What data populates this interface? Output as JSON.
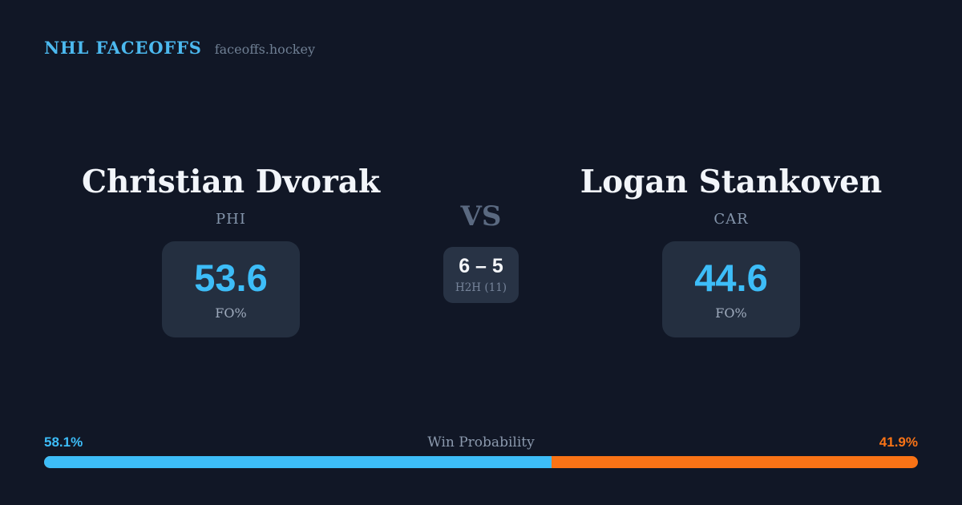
{
  "header": {
    "brand": "NHL FACEOFFS",
    "site": "faceoffs.hockey"
  },
  "matchup": {
    "vs_label": "VS",
    "left_player": {
      "name": "Christian Dvorak",
      "team": "PHI",
      "stat_value": "53.6",
      "stat_label": "FO%"
    },
    "right_player": {
      "name": "Logan Stankoven",
      "team": "CAR",
      "stat_value": "44.6",
      "stat_label": "FO%"
    },
    "h2h": {
      "record": "6 – 5",
      "label": "H2H (11)"
    }
  },
  "win_probability": {
    "title": "Win Probability",
    "left_pct_label": "58.1%",
    "right_pct_label": "41.9%",
    "left_value": 58.1,
    "right_value": 41.9
  },
  "colors": {
    "background": "#111726",
    "card": "#242f40",
    "accent_blue": "#3dbdf8",
    "accent_orange": "#f97316",
    "name_text": "#f2f5fa",
    "muted_text": "#8495ab"
  },
  "chart_data": {
    "type": "bar",
    "title": "Win Probability",
    "categories": [
      "Christian Dvorak (PHI)",
      "Logan Stankoven (CAR)"
    ],
    "values": [
      58.1,
      41.9
    ],
    "unit": "%",
    "series_colors": [
      "#3dbdf8",
      "#f97316"
    ],
    "xlabel": "",
    "ylabel": "",
    "legend": false,
    "notes": {
      "faceoff_pct": {
        "Christian Dvorak": 53.6,
        "Logan Stankoven": 44.6
      },
      "head_to_head_record": "6 – 5",
      "head_to_head_total_faceoffs": 11
    }
  }
}
